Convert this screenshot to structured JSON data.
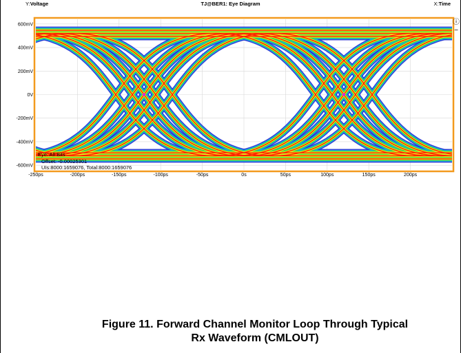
{
  "scope": {
    "y_axis_name": "Voltage",
    "y_axis_prefix": "Y:",
    "x_axis_name": "Time",
    "x_axis_prefix": "X:",
    "title": "TJ@BER1: Eye Diagram",
    "side_icons": [
      "info-icon",
      "minus-icon"
    ]
  },
  "colors": {
    "frame": "#f39a1e",
    "trace_blue": "#1f2fd0",
    "density_mid": "#18b0e0",
    "density_green": "#3fd13f",
    "density_yellow": "#f2f21a",
    "density_red": "#ff2000",
    "marker": "#e020e0"
  },
  "chart_data": {
    "type": "eye-diagram",
    "title": "TJ@BER1: Eye Diagram",
    "xlabel": "Time",
    "ylabel": "Voltage",
    "x_unit": "ps",
    "y_unit": "mV",
    "xlim": [
      -250,
      250
    ],
    "ylim": [
      -640,
      640
    ],
    "x_ticks": [
      -250,
      -200,
      -150,
      -100,
      -50,
      0,
      50,
      100,
      150,
      200
    ],
    "x_tick_labels": [
      "-250ps",
      "-200ps",
      "-150ps",
      "-100ps",
      "-50ps",
      "0s",
      "50ps",
      "100ps",
      "150ps",
      "200ps"
    ],
    "y_ticks": [
      600,
      400,
      200,
      0,
      -200,
      -400,
      -600
    ],
    "y_tick_labels": [
      "600mV",
      "400mV",
      "200mV",
      "0V",
      "-200mV",
      "-400mV",
      "-600mV"
    ],
    "high_level_mV": 520,
    "low_level_mV": -520,
    "crossing_points_ps": [
      -120,
      120
    ],
    "crossing_level_mV": 0,
    "unit_interval_ps": 240,
    "grid": true,
    "annotations": {
      "label": "Eye: All Bits",
      "offset": "Offset: -0.00025301",
      "counts": "UIs:8000:1659076, Total:8000:1659076"
    }
  },
  "caption": {
    "line1": "Figure 11. Forward Channel Monitor Loop Through Typical",
    "line2": "Rx Waveform (CMLOUT)"
  }
}
